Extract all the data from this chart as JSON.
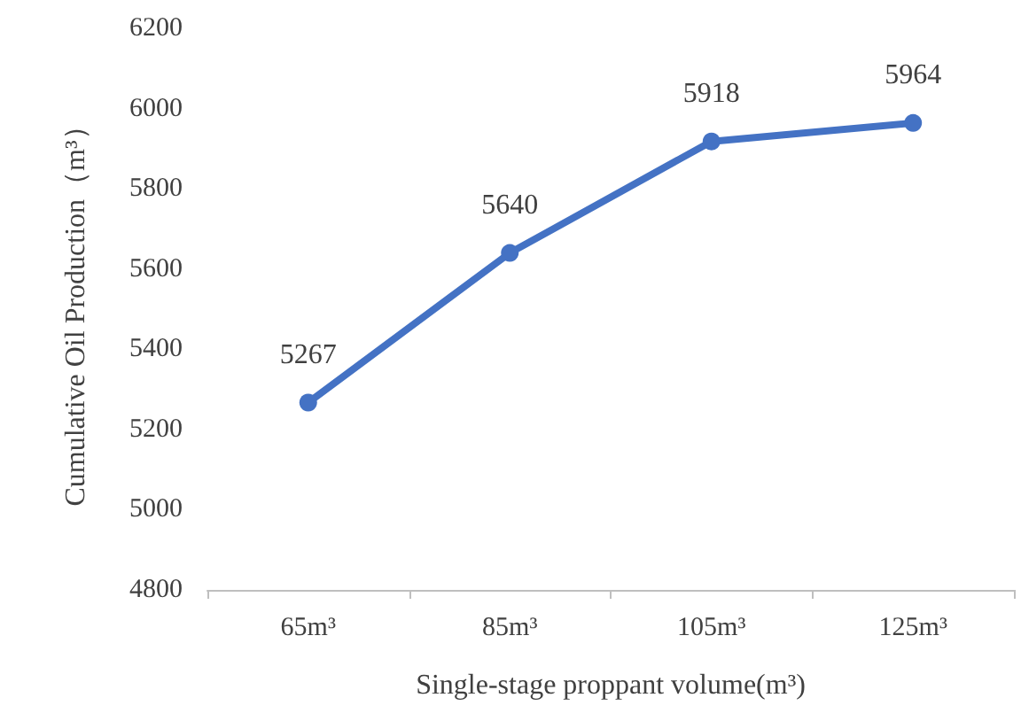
{
  "chart_data": {
    "type": "line",
    "xlabel": "Single-stage proppant volume(m³)",
    "ylabel": "Cumulative Oil Production（m³）",
    "categories": [
      "65m³",
      "85m³",
      "105m³",
      "125m³"
    ],
    "series": [
      {
        "color": "#4472c4",
        "values": [
          5267,
          5640,
          5918,
          5964
        ]
      }
    ],
    "ylim": [
      4800,
      6200
    ],
    "yticks": [
      4800,
      5000,
      5200,
      5400,
      5600,
      5800,
      6000,
      6200
    ],
    "data_labels": true,
    "marker": "circle",
    "line_style": "solid"
  }
}
